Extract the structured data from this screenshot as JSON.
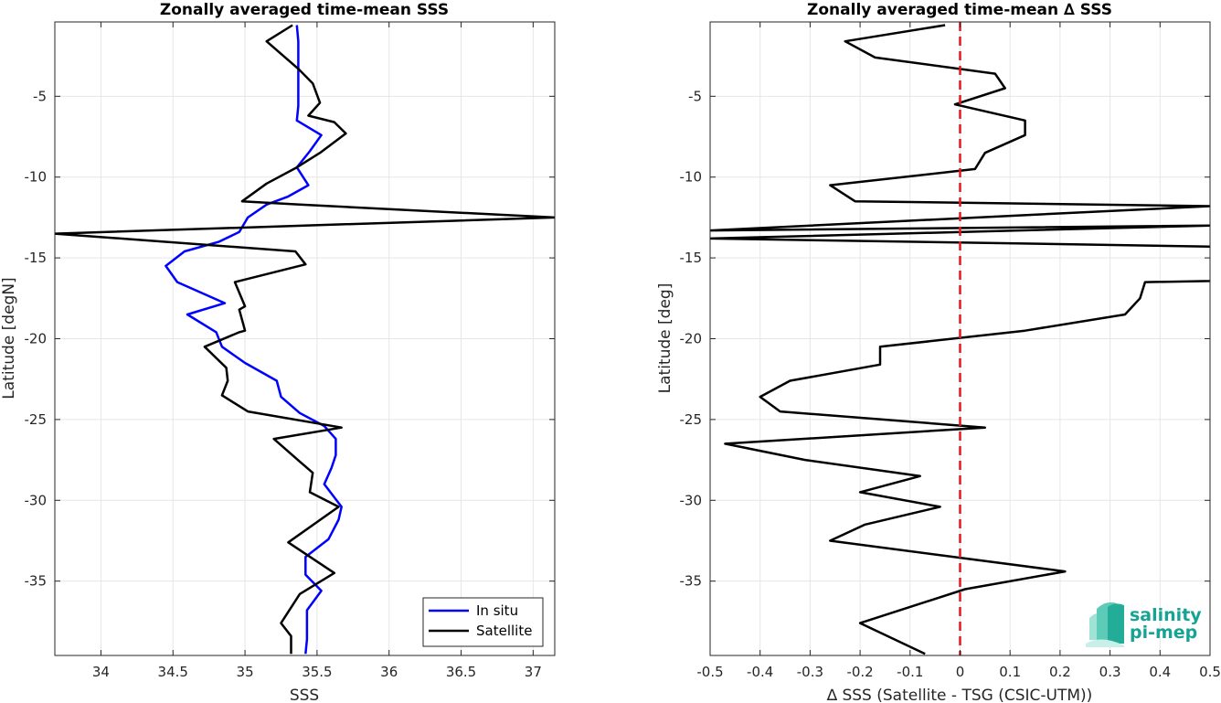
{
  "chart_data": [
    {
      "type": "line",
      "title": "Zonally averaged time-mean SSS",
      "xlabel": "SSS",
      "ylabel": "Latitude [degN]",
      "xlim": [
        33.68,
        37.15
      ],
      "ylim": [
        -39.6,
        -0.4
      ],
      "xticks": [
        34,
        34.5,
        35,
        35.5,
        36,
        36.5,
        37
      ],
      "xtick_labels": [
        "34",
        "34.5",
        "35",
        "35.5",
        "36",
        "36.5",
        "37"
      ],
      "yticks": [
        -5,
        -10,
        -15,
        -20,
        -25,
        -30,
        -35
      ],
      "ytick_labels": [
        "-5",
        "-10",
        "-15",
        "-20",
        "-25",
        "-30",
        "-35"
      ],
      "grid": true,
      "legend_position": "bottom-right",
      "series": [
        {
          "name": "In situ",
          "color": "#0000ff",
          "points": [
            [
              35.36,
              -0.6
            ],
            [
              35.37,
              -1.6
            ],
            [
              35.37,
              -2.6
            ],
            [
              35.37,
              -3.6
            ],
            [
              35.37,
              -4.6
            ],
            [
              35.37,
              -5.6
            ],
            [
              35.36,
              -6.5
            ],
            [
              35.53,
              -7.4
            ],
            [
              35.45,
              -8.4
            ],
            [
              35.36,
              -9.4
            ],
            [
              35.44,
              -10.5
            ],
            [
              35.3,
              -11.2
            ],
            [
              35.15,
              -11.7
            ],
            [
              35.02,
              -12.5
            ],
            [
              34.96,
              -13.4
            ],
            [
              34.82,
              -14
            ],
            [
              34.58,
              -14.6
            ],
            [
              34.45,
              -15.5
            ],
            [
              34.53,
              -16.5
            ],
            [
              34.86,
              -17.8
            ],
            [
              34.6,
              -18.5
            ],
            [
              34.8,
              -19.6
            ],
            [
              34.84,
              -20.5
            ],
            [
              35.0,
              -21.5
            ],
            [
              35.22,
              -22.6
            ],
            [
              35.25,
              -23.6
            ],
            [
              35.38,
              -24.6
            ],
            [
              35.55,
              -25.4
            ],
            [
              35.63,
              -26.2
            ],
            [
              35.63,
              -27.2
            ],
            [
              35.6,
              -28
            ],
            [
              35.55,
              -29
            ],
            [
              35.67,
              -30.4
            ],
            [
              35.65,
              -31.2
            ],
            [
              35.58,
              -32.4
            ],
            [
              35.42,
              -33.5
            ],
            [
              35.42,
              -34.6
            ],
            [
              35.53,
              -35.6
            ],
            [
              35.43,
              -36.8
            ],
            [
              35.43,
              -38.1
            ],
            [
              35.43,
              -38.6
            ],
            [
              35.42,
              -39.5
            ]
          ]
        },
        {
          "name": "Satellite",
          "color": "#000000",
          "points": [
            [
              35.33,
              -0.6
            ],
            [
              35.15,
              -1.6
            ],
            [
              35.37,
              -3.3
            ],
            [
              35.47,
              -4.2
            ],
            [
              35.52,
              -5.4
            ],
            [
              35.44,
              -6.2
            ],
            [
              35.62,
              -6.6
            ],
            [
              35.7,
              -7.3
            ],
            [
              35.52,
              -8.5
            ],
            [
              35.36,
              -9.4
            ],
            [
              35.15,
              -10.4
            ],
            [
              34.98,
              -11.5
            ],
            [
              35.38,
              -11.7
            ],
            [
              37.15,
              -12.5
            ],
            [
              33.68,
              -13.5
            ],
            [
              35.35,
              -14.6
            ],
            [
              35.42,
              -15.4
            ],
            [
              34.93,
              -16.5
            ],
            [
              35.0,
              -18
            ],
            [
              34.96,
              -18.2
            ],
            [
              35.0,
              -19.5
            ],
            [
              34.96,
              -19.6
            ],
            [
              34.72,
              -20.5
            ],
            [
              34.87,
              -21.8
            ],
            [
              34.88,
              -22.6
            ],
            [
              34.84,
              -23.5
            ],
            [
              35.02,
              -24.5
            ],
            [
              35.67,
              -25.5
            ],
            [
              35.2,
              -26.2
            ],
            [
              35.38,
              -27.6
            ],
            [
              35.47,
              -28.3
            ],
            [
              35.45,
              -29.5
            ],
            [
              35.65,
              -30.4
            ],
            [
              35.3,
              -32.6
            ],
            [
              35.62,
              -34.5
            ],
            [
              35.38,
              -35.8
            ],
            [
              35.25,
              -37.6
            ],
            [
              35.32,
              -38.4
            ],
            [
              35.32,
              -39.5
            ]
          ]
        }
      ]
    },
    {
      "type": "line",
      "title": "Zonally averaged time-mean ∆ SSS",
      "xlabel": "∆ SSS (Satellite - TSG (CSIC-UTM))",
      "ylabel": "Latitude [deg]",
      "xlim": [
        -0.5,
        0.5
      ],
      "ylim": [
        -39.6,
        -0.4
      ],
      "xticks": [
        -0.5,
        -0.4,
        -0.3,
        -0.2,
        -0.1,
        0,
        0.1,
        0.2,
        0.3,
        0.4,
        0.5
      ],
      "xtick_labels": [
        "-0.5",
        "-0.4",
        "-0.3",
        "-0.2",
        "-0.1",
        "0",
        "0.1",
        "0.2",
        "0.3",
        "0.4",
        "0.5"
      ],
      "yticks": [
        -5,
        -10,
        -15,
        -20,
        -25,
        -30,
        -35
      ],
      "ytick_labels": [
        "-5",
        "-10",
        "-15",
        "-20",
        "-25",
        "-30",
        "-35"
      ],
      "grid": true,
      "reference_line": {
        "x": 0,
        "color": "#e31a1c",
        "style": "dashed"
      },
      "series": [
        {
          "name": "",
          "color": "#000000",
          "points": [
            [
              -0.03,
              -0.6
            ],
            [
              -0.23,
              -1.6
            ],
            [
              -0.17,
              -2.6
            ],
            [
              0.07,
              -3.6
            ],
            [
              0.09,
              -4.5
            ],
            [
              -0.01,
              -5.5
            ],
            [
              0.13,
              -6.5
            ],
            [
              0.13,
              -7.4
            ],
            [
              0.05,
              -8.5
            ],
            [
              0.03,
              -9.5
            ],
            [
              -0.26,
              -10.5
            ],
            [
              -0.21,
              -11.5
            ],
            [
              0.5,
              -11.8
            ],
            [
              -0.5,
              -13.3
            ],
            [
              0.5,
              -13
            ],
            [
              -0.5,
              -13.8
            ],
            [
              0.5,
              -14.3
            ],
            [
              0.95,
              -16.2
            ],
            [
              0.37,
              -16.5
            ],
            [
              0.36,
              -17.5
            ],
            [
              0.33,
              -18.5
            ],
            [
              0.13,
              -19.5
            ],
            [
              -0.16,
              -20.5
            ],
            [
              -0.16,
              -21.6
            ],
            [
              -0.34,
              -22.6
            ],
            [
              -0.4,
              -23.6
            ],
            [
              -0.36,
              -24.5
            ],
            [
              0.05,
              -25.5
            ],
            [
              -0.47,
              -26.5
            ],
            [
              -0.31,
              -27.5
            ],
            [
              -0.08,
              -28.5
            ],
            [
              -0.2,
              -29.5
            ],
            [
              -0.04,
              -30.4
            ],
            [
              -0.19,
              -31.5
            ],
            [
              -0.26,
              -32.5
            ],
            [
              0.21,
              -34.4
            ],
            [
              0.01,
              -35.5
            ],
            [
              -0.2,
              -37.6
            ],
            [
              -0.07,
              -39.5
            ]
          ]
        }
      ]
    }
  ],
  "legend": {
    "items": [
      {
        "label": "In situ",
        "color": "#0000ff"
      },
      {
        "label": "Satellite",
        "color": "#000000"
      }
    ]
  },
  "logo": {
    "line1": "salinity",
    "line2": "pi-mep",
    "color": "#16a394"
  }
}
